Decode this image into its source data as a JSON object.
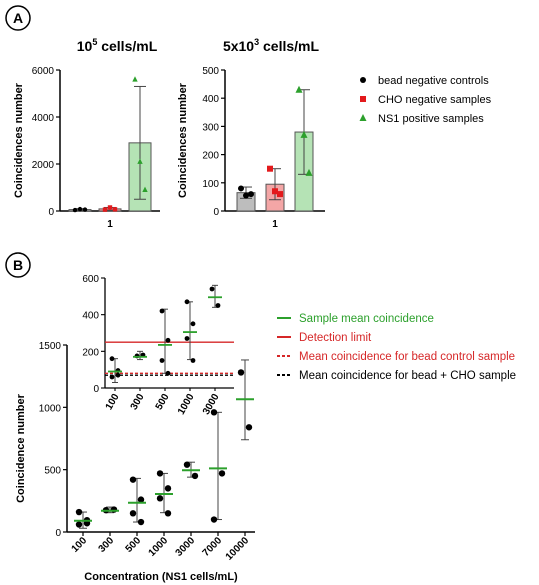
{
  "panel_a": {
    "label": "A",
    "left_title_base": "10",
    "left_title_exp": "5",
    "left_title_unit": " cells/mL",
    "right_title_base": "5x10",
    "right_title_exp": "3",
    "right_title_unit": " cells/mL",
    "legend": [
      {
        "label": "bead negative controls",
        "marker": "circle",
        "color": "#000000"
      },
      {
        "label": "CHO negative samples",
        "marker": "square",
        "color": "#e31a1c"
      },
      {
        "label": "NS1 positive samples",
        "marker": "triangle",
        "color": "#2ca02c"
      }
    ]
  },
  "panel_b": {
    "label": "B",
    "legend": [
      {
        "label": "Sample mean coincidence",
        "style": "solid",
        "color": "#2ca02c"
      },
      {
        "label": "Detection limit",
        "style": "solid",
        "color": "#d62728"
      },
      {
        "label": "Mean coincidence for bead control sample",
        "style": "dashed",
        "color": "#d62728"
      },
      {
        "label": "Mean coincidence for bead + CHO sample",
        "style": "dashed",
        "color": "#000000"
      }
    ]
  },
  "colors": {
    "bar_gray": "#bdbdbd",
    "bar_red": "#f4a6a6",
    "bar_green": "#b5e3b5",
    "mean_green": "#2ca02c",
    "limit_red": "#d62728"
  },
  "chart_data": [
    {
      "type": "bar",
      "title": "10^5 cells/mL",
      "xlabel": "",
      "ylabel": "Coincidences number",
      "categories": [
        "1"
      ],
      "ylim": [
        0,
        6000
      ],
      "yticks": [
        0,
        2000,
        4000,
        6000
      ],
      "series": [
        {
          "name": "bead negative controls",
          "value": 60,
          "sd": 40,
          "points": [
            40,
            80,
            60
          ],
          "color": "#000000",
          "fill": "#bdbdbd"
        },
        {
          "name": "CHO negative samples",
          "value": 90,
          "sd": 60,
          "points": [
            60,
            150,
            70
          ],
          "color": "#e31a1c",
          "fill": "#f4a6a6"
        },
        {
          "name": "NS1 positive samples",
          "value": 2900,
          "sd": 2400,
          "points": [
            5600,
            2100,
            900
          ],
          "color": "#2ca02c",
          "fill": "#b5e3b5"
        }
      ]
    },
    {
      "type": "bar",
      "title": "5x10^3 cells/mL",
      "xlabel": "",
      "ylabel": "Coincidences number",
      "categories": [
        "1"
      ],
      "ylim": [
        0,
        500
      ],
      "yticks": [
        0,
        100,
        200,
        300,
        400,
        500
      ],
      "series": [
        {
          "name": "bead negative controls",
          "value": 65,
          "sd": 20,
          "points": [
            80,
            55,
            60
          ],
          "color": "#000000",
          "fill": "#bdbdbd"
        },
        {
          "name": "CHO negative samples",
          "value": 95,
          "sd": 55,
          "points": [
            150,
            70,
            60
          ],
          "color": "#e31a1c",
          "fill": "#f4a6a6"
        },
        {
          "name": "NS1 positive samples",
          "value": 280,
          "sd": 150,
          "points": [
            430,
            270,
            135
          ],
          "color": "#2ca02c",
          "fill": "#b5e3b5"
        }
      ]
    },
    {
      "type": "scatter",
      "title": "",
      "xlabel": "Concentration (NS1 cells/mL)",
      "ylabel": "Coincidence number",
      "categories": [
        "100",
        "300",
        "500",
        "1000",
        "3000",
        "7000",
        "10000"
      ],
      "ylim": [
        0,
        1500
      ],
      "yticks": [
        0,
        500,
        1000,
        1500
      ],
      "groups": [
        {
          "x": "100",
          "mean": 90,
          "err": [
            30,
            160
          ],
          "points": [
            160,
            95,
            60,
            70
          ]
        },
        {
          "x": "300",
          "mean": 170,
          "err": [
            155,
            200
          ],
          "points": [
            175,
            180
          ]
        },
        {
          "x": "500",
          "mean": 235,
          "err": [
            80,
            430
          ],
          "points": [
            420,
            260,
            150,
            80
          ]
        },
        {
          "x": "1000",
          "mean": 305,
          "err": [
            155,
            470
          ],
          "points": [
            470,
            350,
            270,
            150
          ]
        },
        {
          "x": "3000",
          "mean": 495,
          "err": [
            440,
            560
          ],
          "points": [
            540,
            450
          ]
        },
        {
          "x": "7000",
          "mean": 510,
          "err": [
            100,
            960
          ],
          "points": [
            960,
            470,
            100
          ]
        },
        {
          "x": "10000",
          "mean": 1065,
          "err": [
            740,
            1380
          ],
          "points": [
            1280,
            840
          ]
        }
      ],
      "inset": {
        "categories": [
          "100",
          "300",
          "500",
          "1000",
          "3000"
        ],
        "ylim": [
          0,
          600
        ],
        "yticks": [
          0,
          200,
          400,
          600
        ],
        "detection_limit": 250,
        "mean_bead_control": 80,
        "mean_bead_cho": 70
      }
    }
  ]
}
